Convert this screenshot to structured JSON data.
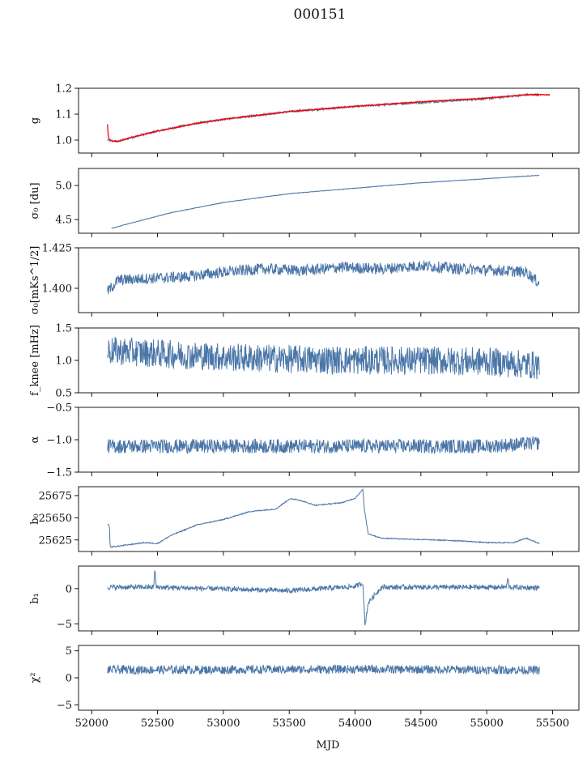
{
  "figure": {
    "title": "000151",
    "x_label": "MJD"
  },
  "chart_data": [
    {
      "type": "line",
      "ylabel": "g",
      "xlim": [
        51900,
        55700
      ],
      "ylim": [
        0.95,
        1.2
      ],
      "yticks": [
        1.0,
        1.1,
        1.2
      ],
      "ytick_labels": [
        "1.0",
        "1.1",
        "1.2"
      ],
      "series": [
        {
          "color": "#4a76a8",
          "kind": "raw",
          "x": [
            52120,
            52150,
            52200,
            52300,
            52500,
            52800,
            53000,
            53500,
            54000,
            54500,
            55000,
            55300,
            55400
          ],
          "values": [
            1.0,
            0.997,
            0.995,
            1.01,
            1.035,
            1.065,
            1.08,
            1.11,
            1.13,
            1.145,
            1.16,
            1.175,
            1.175
          ]
        },
        {
          "color": "#ff0000",
          "kind": "model",
          "x": [
            52120,
            52125,
            52130,
            52150,
            52200,
            52300,
            52500,
            52800,
            53000,
            53500,
            54000,
            54500,
            55000,
            55300,
            55480
          ],
          "values": [
            1.06,
            1.02,
            1.005,
            0.997,
            0.995,
            1.01,
            1.035,
            1.065,
            1.08,
            1.11,
            1.13,
            1.148,
            1.162,
            1.175,
            1.175
          ]
        }
      ]
    },
    {
      "type": "line",
      "ylabel": "σ₀ [du]",
      "xlim": [
        51900,
        55700
      ],
      "ylim": [
        4.3,
        5.25
      ],
      "yticks": [
        4.5,
        5.0
      ],
      "ytick_labels": [
        "4.5",
        "5.0"
      ],
      "series": [
        {
          "color": "#4a76a8",
          "x": [
            52150,
            52300,
            52600,
            53000,
            53500,
            54000,
            54500,
            55000,
            55400
          ],
          "values": [
            4.37,
            4.45,
            4.6,
            4.75,
            4.88,
            4.96,
            5.04,
            5.1,
            5.15
          ]
        }
      ]
    },
    {
      "type": "line",
      "ylabel": "σ₀[mKs^1/2]",
      "xlim": [
        51900,
        55700
      ],
      "ylim": [
        1.385,
        1.425
      ],
      "yticks": [
        1.4,
        1.425
      ],
      "ytick_labels": [
        "1.400",
        "1.425"
      ],
      "series": [
        {
          "color": "#4a76a8",
          "x": [
            52120,
            52200,
            52400,
            52700,
            53000,
            53300,
            53600,
            53900,
            54200,
            54500,
            54800,
            55100,
            55300,
            55400
          ],
          "values": [
            1.398,
            1.405,
            1.406,
            1.407,
            1.41,
            1.412,
            1.411,
            1.413,
            1.412,
            1.414,
            1.412,
            1.411,
            1.41,
            1.403
          ]
        }
      ]
    },
    {
      "type": "line",
      "ylabel": "f_knee [mHz]",
      "xlim": [
        51900,
        55700
      ],
      "ylim": [
        0.5,
        1.5
      ],
      "yticks": [
        0.5,
        1.0,
        1.5
      ],
      "ytick_labels": [
        "0.5",
        "1.0",
        "1.5"
      ],
      "series": [
        {
          "color": "#4a76a8",
          "x": [
            52120,
            52400,
            53000,
            53500,
            54000,
            54500,
            55000,
            55400
          ],
          "values": [
            1.15,
            1.12,
            1.05,
            1.02,
            1.0,
            1.0,
            0.98,
            0.92
          ]
        }
      ]
    },
    {
      "type": "line",
      "ylabel": "α",
      "xlim": [
        51900,
        55700
      ],
      "ylim": [
        -1.5,
        -0.5
      ],
      "yticks": [
        -1.5,
        -1.0,
        -0.5
      ],
      "ytick_labels": [
        "−1.5",
        "−1.0",
        "−0.5"
      ],
      "series": [
        {
          "color": "#4a76a8",
          "x": [
            52120,
            53000,
            54000,
            55000,
            55400
          ],
          "values": [
            -1.1,
            -1.1,
            -1.1,
            -1.1,
            -1.05
          ]
        }
      ]
    },
    {
      "type": "line",
      "ylabel": "b₀",
      "xlim": [
        51900,
        55700
      ],
      "ylim": [
        25612,
        25685
      ],
      "yticks": [
        25625,
        25650,
        25675
      ],
      "ytick_labels": [
        "25625",
        "25650",
        "25675"
      ],
      "series": [
        {
          "color": "#4a76a8",
          "x": [
            52120,
            52135,
            52140,
            52200,
            52400,
            52500,
            52600,
            52800,
            53000,
            53200,
            53400,
            53500,
            53550,
            53700,
            53900,
            54000,
            54060,
            54070,
            54100,
            54200,
            54400,
            54600,
            54800,
            55000,
            55200,
            55300,
            55400
          ],
          "values": [
            25643,
            25641,
            25617,
            25618,
            25622,
            25621,
            25630,
            25642,
            25648,
            25657,
            25660,
            25671,
            25671,
            25664,
            25667,
            25672,
            25682,
            25660,
            25632,
            25627,
            25626,
            25625,
            25624,
            25622,
            25622,
            25627,
            25621
          ]
        }
      ]
    },
    {
      "type": "line",
      "ylabel": "b₁",
      "xlim": [
        51900,
        55700
      ],
      "ylim": [
        -6,
        3.2
      ],
      "yticks": [
        -5,
        0
      ],
      "ytick_labels": [
        "−5",
        "0"
      ],
      "series": [
        {
          "color": "#4a76a8",
          "x": [
            52120,
            52470,
            52480,
            52490,
            53500,
            54000,
            54060,
            54075,
            54100,
            54200,
            55150,
            55160,
            55170,
            55400
          ],
          "values": [
            0.2,
            0.2,
            2.8,
            0.2,
            -0.3,
            0.3,
            0.8,
            -5.3,
            -2.0,
            0.2,
            0.2,
            1.5,
            0.2,
            0.1
          ]
        }
      ]
    },
    {
      "type": "line",
      "ylabel": "χ²",
      "xlim": [
        51900,
        55700
      ],
      "ylim": [
        -6,
        6
      ],
      "yticks": [
        -5,
        0,
        5
      ],
      "ytick_labels": [
        "−5",
        "0",
        "5"
      ],
      "series": [
        {
          "color": "#4a76a8",
          "x": [
            52120,
            53000,
            54000,
            55000,
            55400
          ],
          "values": [
            1.5,
            1.5,
            1.6,
            1.5,
            1.4
          ]
        }
      ]
    }
  ],
  "x_axis": {
    "ticks": [
      52000,
      52500,
      53000,
      53500,
      54000,
      54500,
      55000,
      55500
    ],
    "tick_labels": [
      "52000",
      "52500",
      "53000",
      "53500",
      "54000",
      "54500",
      "55000",
      "55500"
    ]
  }
}
